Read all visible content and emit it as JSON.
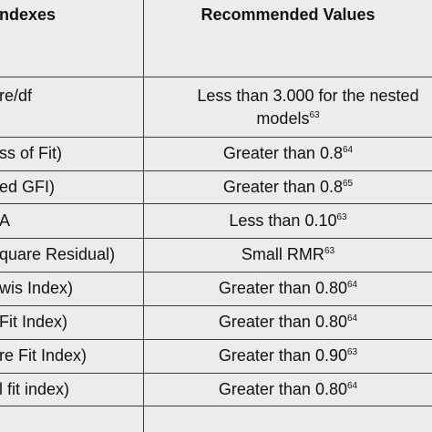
{
  "header": {
    "col1": "ndexes",
    "col2": "Recommended Values"
  },
  "rows": [
    {
      "index": "re/df",
      "value_line1": "Less than 3.000 for the nested",
      "value_line2": "models",
      "value_sup": "63"
    },
    {
      "index": "ss of Fit)",
      "value": "Greater than 0.8",
      "value_sup": "64"
    },
    {
      "index": "ed GFI)",
      "value": "Greater than 0.8",
      "value_sup": "65"
    },
    {
      "index": "A",
      "value": "Less than 0.10",
      "value_sup": "63"
    },
    {
      "index": "quare Residual)",
      "value": "Small RMR",
      "value_sup": "63"
    },
    {
      "index": "wis Index)",
      "value": "Greater than 0.80",
      "value_sup": "64"
    },
    {
      "index": "Fit Index)",
      "value": "Greater than 0.80",
      "value_sup": "64"
    },
    {
      "index": "re Fit Index)",
      "value": "Greater than 0.90",
      "value_sup": "63"
    },
    {
      "index": "l fit index)",
      "value": "Greater than 0.80",
      "value_sup": "64"
    }
  ]
}
